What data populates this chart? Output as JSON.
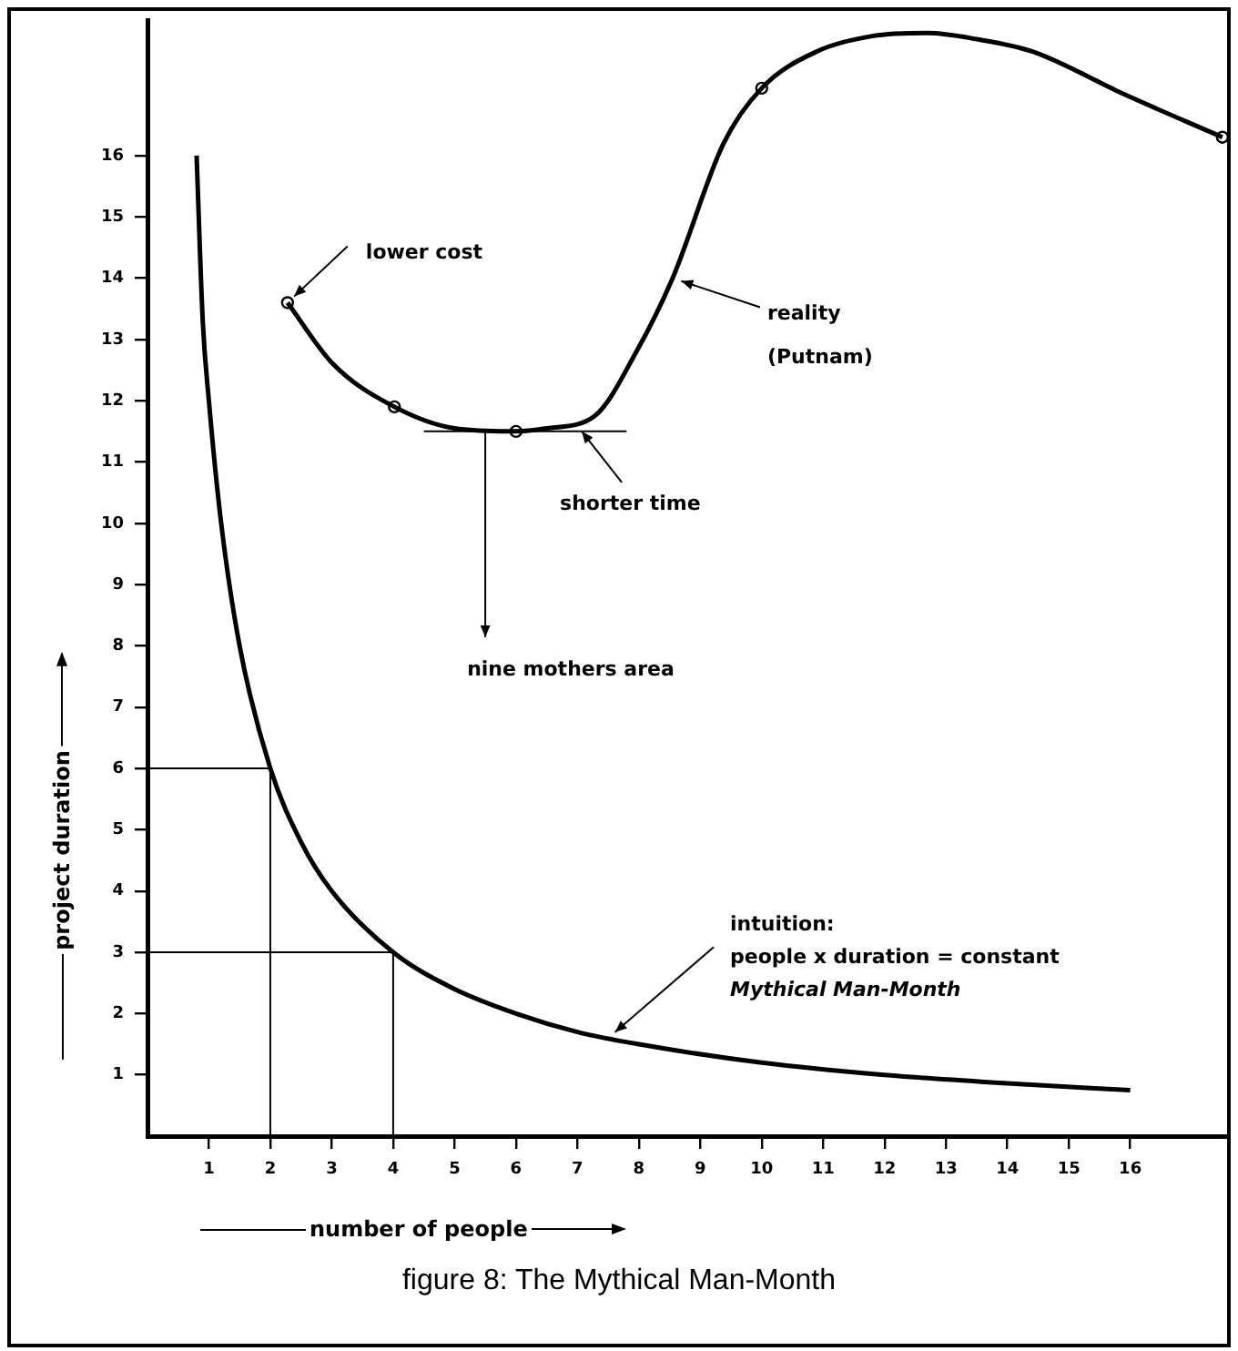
{
  "chart_data": {
    "type": "line",
    "title": "figure 8: The Mythical Man-Month",
    "xlabel": "number of people",
    "ylabel": "project duration",
    "xlim": [
      0,
      17.6
    ],
    "ylim": [
      0,
      18.2
    ],
    "xticks": [
      1,
      2,
      3,
      4,
      5,
      6,
      7,
      8,
      9,
      10,
      11,
      12,
      13,
      14,
      15,
      16
    ],
    "yticks": [
      1,
      2,
      3,
      4,
      5,
      6,
      7,
      8,
      9,
      10,
      11,
      12,
      13,
      14,
      15,
      16
    ],
    "grid": false,
    "series": [
      {
        "color": "#000000",
        "marker": "none",
        "x": [
          0.8,
          0.9,
          1,
          1.2,
          1.5,
          2,
          2.5,
          3,
          4,
          5,
          6,
          7,
          8,
          10,
          12,
          14,
          16
        ],
        "values": [
          16,
          13.3,
          12,
          10,
          8,
          6,
          4.8,
          4,
          3,
          2.4,
          2,
          1.7,
          1.5,
          1.2,
          1,
          0.86,
          0.75
        ]
      },
      {
        "color": "#000000",
        "marker": "none",
        "x": [
          2.28,
          3.02,
          4.02,
          5,
          6,
          6.5,
          7.28,
          7.96,
          8.55,
          9.38,
          10,
          10.9,
          11.8,
          12.7,
          13.5,
          14.4,
          15.9,
          17.5
        ],
        "values": [
          13.6,
          12.6,
          11.9,
          11.55,
          11.5,
          11.55,
          11.75,
          12.8,
          14,
          16.2,
          17.1,
          17.7,
          17.95,
          18,
          17.9,
          17.7,
          17,
          16.3
        ]
      },
      {
        "type": "scatter",
        "color": "#000000",
        "marker": "circle",
        "x": [
          2.28,
          4.02,
          6,
          10,
          17.5
        ],
        "values": [
          13.6,
          11.9,
          11.5,
          17.1,
          16.3
        ]
      },
      {
        "color": "#000000",
        "marker": "none",
        "x": [
          0,
          2,
          2
        ],
        "values": [
          6,
          6,
          0
        ]
      },
      {
        "color": "#000000",
        "marker": "none",
        "x": [
          0,
          4,
          4
        ],
        "values": [
          3,
          3,
          0
        ]
      },
      {
        "color": "#000000",
        "marker": "none",
        "x": [
          4.5,
          7.8
        ],
        "values": [
          11.5,
          11.5
        ]
      }
    ],
    "annotations": [
      {
        "text": "lower cost",
        "x": 2.28,
        "y": 13.6
      },
      {
        "text": "reality\n(Putnam)",
        "x": 8.55,
        "y": 14
      },
      {
        "text": "shorter time",
        "x": 7.07,
        "y": 11.5
      },
      {
        "text": "nine mothers area",
        "x": 5.5,
        "y": 11.5
      },
      {
        "text": "intuition:\npeople x duration = constant\nMythical Man-Month",
        "x": 7.5,
        "y": 1.6
      }
    ]
  }
}
